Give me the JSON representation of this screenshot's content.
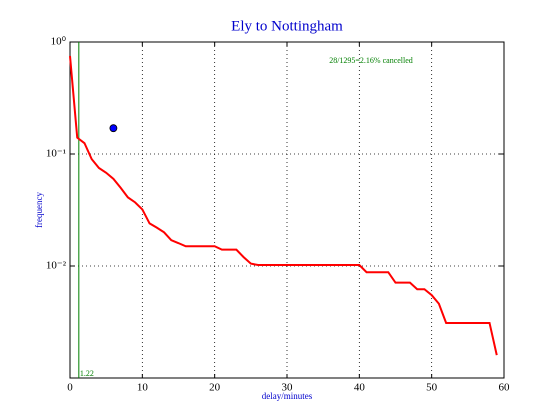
{
  "chart_data": {
    "type": "line",
    "title": "Ely to Nottingham",
    "xlabel": "delay/minutes",
    "ylabel": "frequency",
    "log_y": true,
    "grid": true,
    "xlim": [
      0,
      60
    ],
    "xticks": [
      0,
      10,
      20,
      30,
      40,
      50,
      60
    ],
    "ylim": [
      0.001,
      1
    ],
    "yticks": [
      {
        "value": 1,
        "label": "10⁰"
      },
      {
        "value": 0.1,
        "label": "10⁻¹"
      },
      {
        "value": 0.01,
        "label": "10⁻²"
      }
    ],
    "series": [
      {
        "color": "#ff0000",
        "x": [
          0,
          1,
          2,
          3,
          4,
          5,
          6,
          7,
          8,
          9,
          10,
          11,
          12,
          13,
          14,
          15,
          16,
          17,
          20,
          21,
          23,
          24,
          25,
          26,
          40,
          41,
          44,
          45,
          47,
          48,
          49,
          50,
          51,
          52,
          58,
          59
        ],
        "values": [
          0.75,
          0.14,
          0.125,
          0.09,
          0.075,
          0.068,
          0.06,
          0.05,
          0.041,
          0.037,
          0.032,
          0.024,
          0.022,
          0.02,
          0.017,
          0.016,
          0.015,
          0.015,
          0.015,
          0.014,
          0.014,
          0.012,
          0.0105,
          0.0102,
          0.0102,
          0.0088,
          0.0088,
          0.0071,
          0.0071,
          0.0062,
          0.0062,
          0.0055,
          0.0046,
          0.0031,
          0.0031,
          0.0016
        ]
      }
    ],
    "point": {
      "x": 6,
      "y": 0.17,
      "color": "#0000ff"
    },
    "vline": {
      "x": 1.22,
      "color": "#007f00"
    },
    "annotation": "28/1295=2.16% cancelled"
  }
}
